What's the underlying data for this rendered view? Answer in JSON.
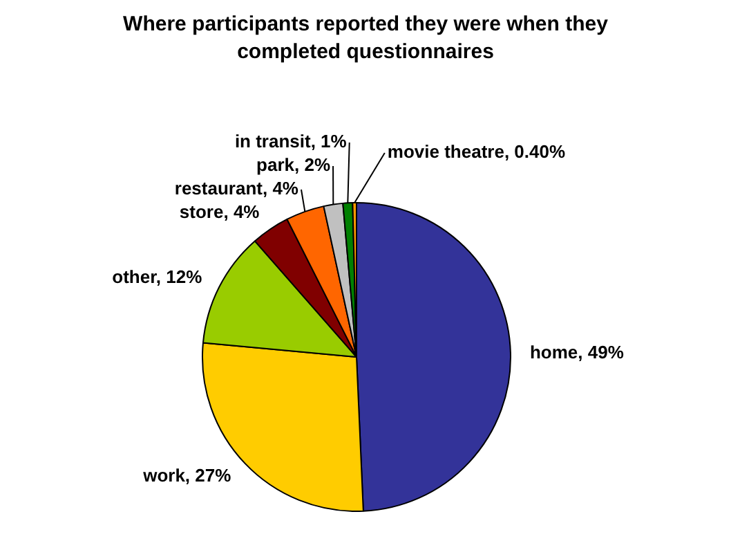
{
  "chart_data": {
    "type": "pie",
    "title": "Where participants reported they were when they completed questionnaires",
    "categories": [
      "home",
      "work",
      "other",
      "store",
      "restaurant",
      "park",
      "in transit",
      "movie theatre"
    ],
    "values": [
      49,
      27,
      12,
      4,
      4,
      2,
      1,
      0.4
    ],
    "value_labels": [
      "49%",
      "27%",
      "12%",
      "4%",
      "4%",
      "2%",
      "1%",
      "0.40%"
    ],
    "colors": [
      "#333399",
      "#ffcc00",
      "#99cc00",
      "#800000",
      "#ff6600",
      "#c0c0c0",
      "#008000",
      "#ff9900"
    ],
    "legend": false
  }
}
